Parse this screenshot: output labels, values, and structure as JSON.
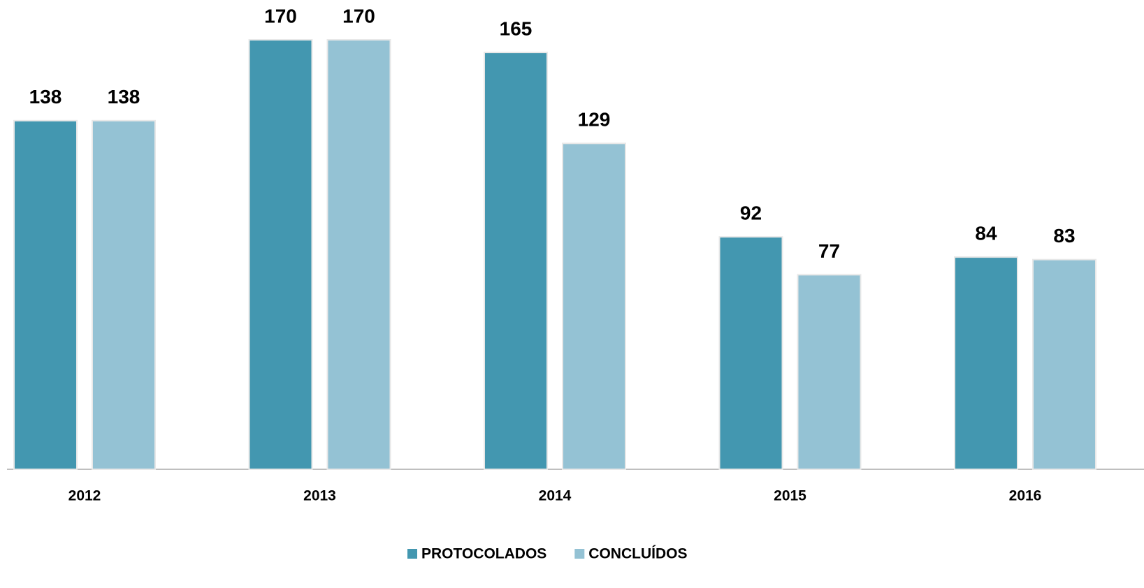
{
  "chart_data": {
    "type": "bar",
    "categories": [
      "2012",
      "2013",
      "2014",
      "2015",
      "2016"
    ],
    "series": [
      {
        "name": "PROTOCOLADOS",
        "color": "#4397b0",
        "values": [
          138,
          170,
          165,
          92,
          84
        ]
      },
      {
        "name": "CONCLUÍDOS",
        "color": "#94c2d4",
        "values": [
          138,
          170,
          129,
          77,
          83
        ]
      }
    ],
    "legend": "bottom"
  }
}
